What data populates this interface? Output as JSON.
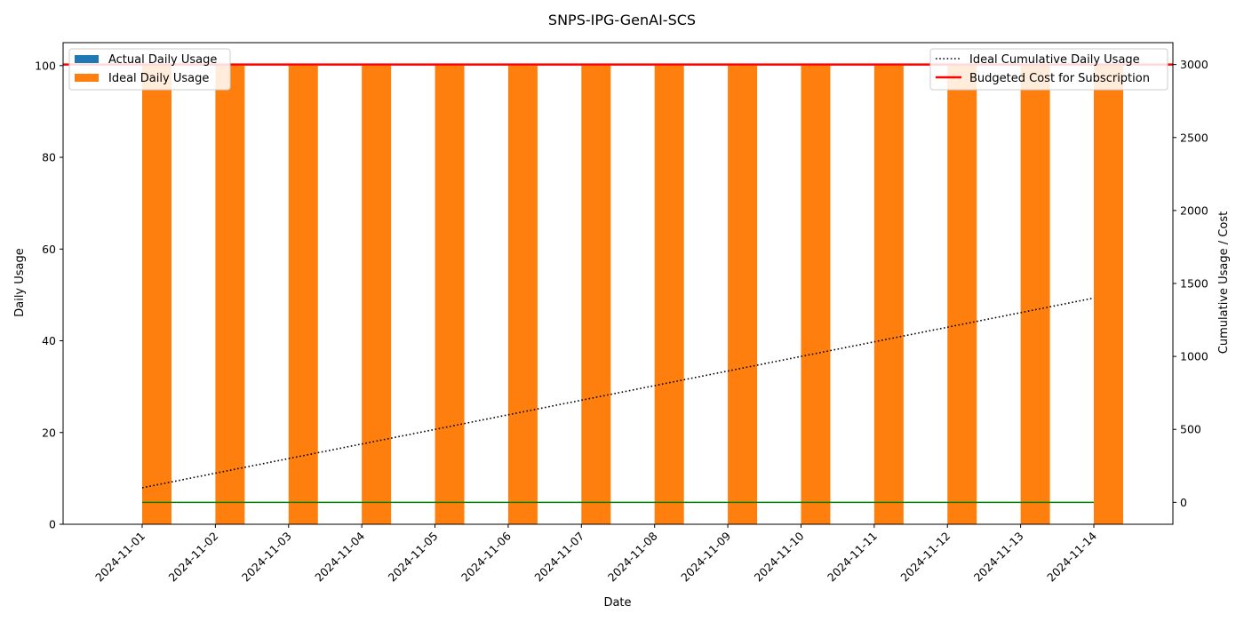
{
  "chart_data": {
    "type": "bar",
    "title": "SNPS-IPG-GenAI-SCS",
    "xlabel": "Date",
    "ylabel_left": "Daily Usage",
    "ylabel_right": "Cumulative Usage / Cost",
    "categories": [
      "2024-11-01",
      "2024-11-02",
      "2024-11-03",
      "2024-11-04",
      "2024-11-05",
      "2024-11-06",
      "2024-11-07",
      "2024-11-08",
      "2024-11-09",
      "2024-11-10",
      "2024-11-11",
      "2024-11-12",
      "2024-11-13",
      "2024-11-14"
    ],
    "ylim_left": [
      0,
      105
    ],
    "yticks_left": [
      0,
      20,
      40,
      60,
      80,
      100
    ],
    "ylim_right": [
      -150,
      3150
    ],
    "yticks_right": [
      0,
      500,
      1000,
      1500,
      2000,
      2500,
      3000
    ],
    "bar_series": [
      {
        "name": "Actual Daily Usage",
        "axis": "left",
        "color": "#1f77b4",
        "values": [
          0,
          0,
          0,
          0,
          0,
          0,
          0,
          0,
          0,
          0,
          0,
          0,
          0,
          0
        ]
      },
      {
        "name": "Ideal Daily Usage",
        "axis": "left",
        "color": "#ff7f0e",
        "values": [
          100,
          100,
          100,
          100,
          100,
          100,
          100,
          100,
          100,
          100,
          100,
          100,
          100,
          100
        ]
      }
    ],
    "line_series": [
      {
        "name": "Ideal Cumulative Daily Usage",
        "axis": "right",
        "color": "#000000",
        "style": "dotted",
        "values": [
          100,
          200,
          300,
          400,
          500,
          600,
          700,
          800,
          900,
          1000,
          1100,
          1200,
          1300,
          1400
        ]
      },
      {
        "name": "",
        "axis": "right",
        "color": "#008000",
        "style": "solid",
        "values": [
          0,
          0,
          0,
          0,
          0,
          0,
          0,
          0,
          0,
          0,
          0,
          0,
          0,
          0
        ]
      }
    ],
    "hlines": [
      {
        "name": "Budgeted Cost for Subscription",
        "axis": "right",
        "color": "#ff0000",
        "value": 3000
      }
    ],
    "legend_left": {
      "placement": "top-left",
      "entries": [
        "Actual Daily Usage",
        "Ideal Daily Usage"
      ]
    },
    "legend_right": {
      "placement": "top-right",
      "entries": [
        "Ideal Cumulative Daily Usage",
        "Budgeted Cost for Subscription"
      ]
    },
    "grid": false
  }
}
